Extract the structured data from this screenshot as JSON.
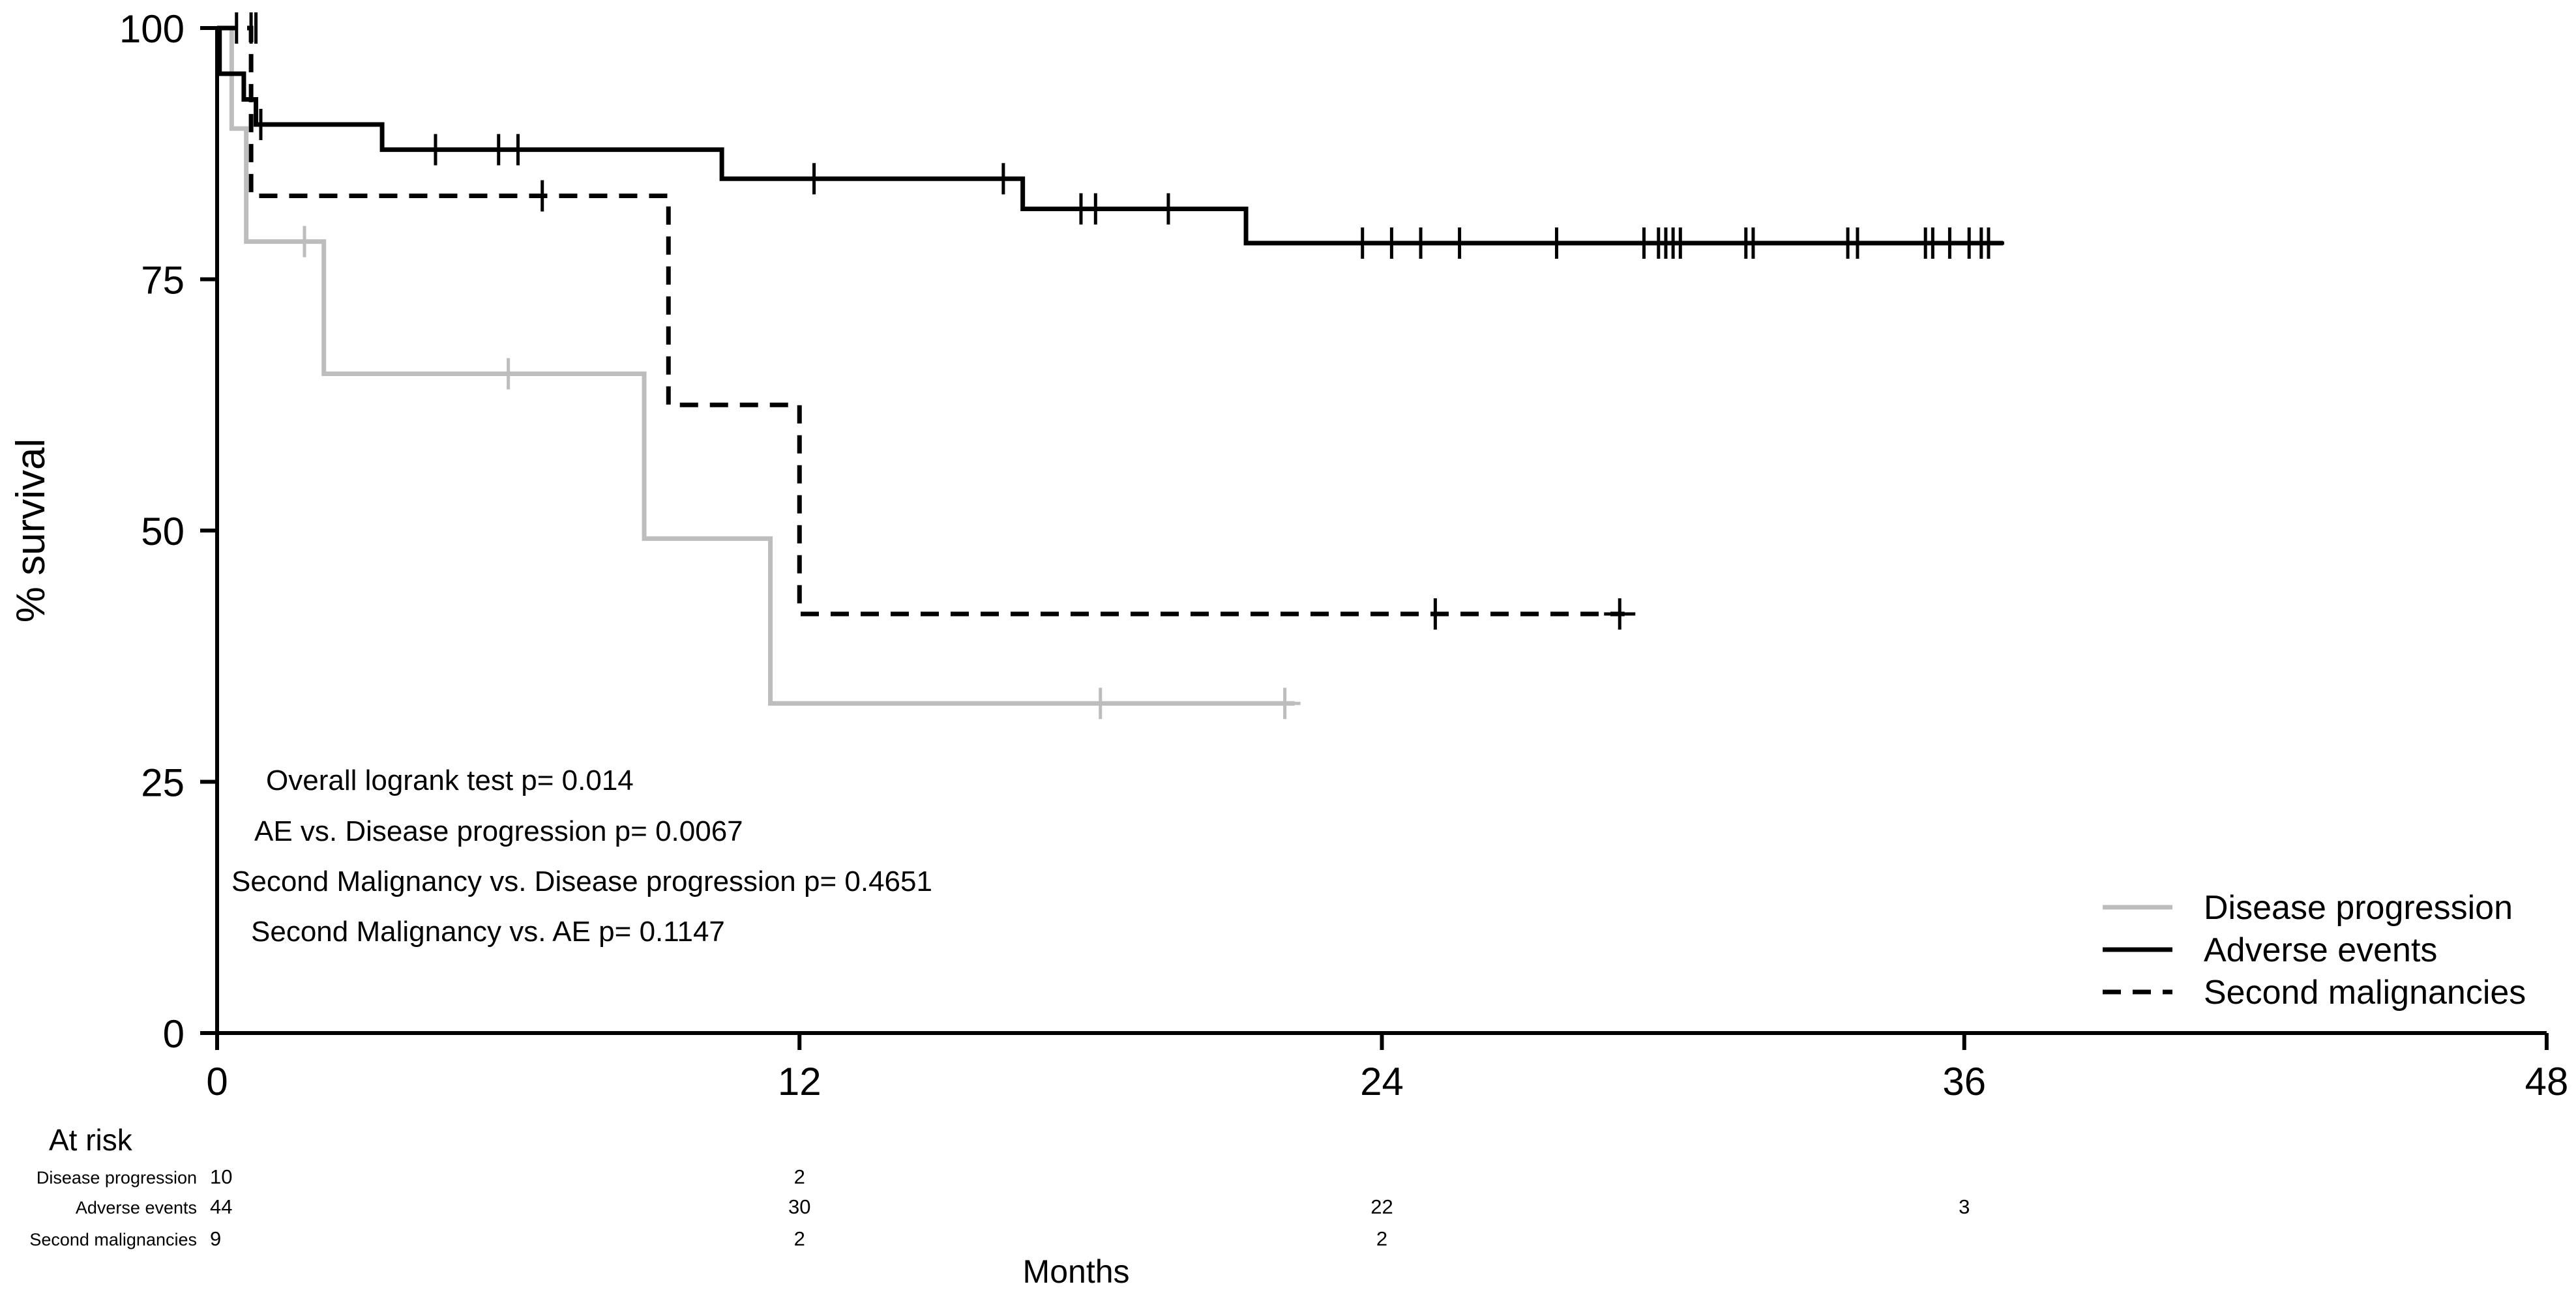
{
  "chart_data": {
    "type": "line",
    "subtype": "kaplan-meier",
    "title": "",
    "xlabel": "Months",
    "ylabel": "% survival",
    "xlim": [
      0,
      48
    ],
    "ylim": [
      0,
      100
    ],
    "xticks": [
      0,
      12,
      24,
      36,
      48
    ],
    "yticks": [
      0,
      25,
      50,
      75,
      100
    ],
    "grid": false,
    "legend_position": "bottom-right",
    "series": [
      {
        "name": "Disease progression",
        "color": "#bdbdbd",
        "dash": "solid",
        "steps": [
          [
            0,
            100
          ],
          [
            0.3,
            90
          ],
          [
            0.6,
            78.75
          ],
          [
            2.2,
            65.6
          ],
          [
            8.8,
            49.2
          ],
          [
            11.4,
            32.8
          ],
          [
            22.2,
            32.8
          ]
        ],
        "censors": [
          [
            1.8,
            78.75
          ],
          [
            6.0,
            65.6
          ],
          [
            18.2,
            32.8
          ],
          [
            22.0,
            32.8
          ]
        ]
      },
      {
        "name": "Adverse events",
        "color": "#000000",
        "dash": "solid",
        "steps": [
          [
            0,
            100
          ],
          [
            0.05,
            95.45
          ],
          [
            0.55,
            92.9
          ],
          [
            0.8,
            90.4
          ],
          [
            3.4,
            87.9
          ],
          [
            10.4,
            85.0
          ],
          [
            16.6,
            82.0
          ],
          [
            21.2,
            78.6
          ],
          [
            36.8,
            78.6
          ]
        ],
        "censors": [
          [
            0.4,
            100
          ],
          [
            0.7,
            100
          ],
          [
            0.9,
            90.4
          ],
          [
            4.5,
            87.9
          ],
          [
            5.8,
            87.9
          ],
          [
            6.2,
            87.9
          ],
          [
            12.3,
            85.0
          ],
          [
            16.2,
            85.0
          ],
          [
            17.8,
            82.0
          ],
          [
            18.1,
            82.0
          ],
          [
            19.6,
            82.0
          ],
          [
            23.6,
            78.6
          ],
          [
            24.2,
            78.6
          ],
          [
            24.8,
            78.6
          ],
          [
            25.6,
            78.6
          ],
          [
            27.6,
            78.6
          ],
          [
            29.4,
            78.6
          ],
          [
            29.7,
            78.6
          ],
          [
            29.85,
            78.6
          ],
          [
            30.0,
            78.6
          ],
          [
            30.15,
            78.6
          ],
          [
            31.5,
            78.6
          ],
          [
            31.65,
            78.6
          ],
          [
            33.6,
            78.6
          ],
          [
            33.8,
            78.6
          ],
          [
            35.2,
            78.6
          ],
          [
            35.35,
            78.6
          ],
          [
            35.7,
            78.6
          ],
          [
            36.1,
            78.6
          ],
          [
            36.35,
            78.6
          ],
          [
            36.5,
            78.6
          ]
        ]
      },
      {
        "name": "Second malignancies",
        "color": "#000000",
        "dash": "dashed",
        "steps": [
          [
            0,
            100
          ],
          [
            0.7,
            83.3
          ],
          [
            9.3,
            62.5
          ],
          [
            12.0,
            41.7
          ],
          [
            29.0,
            41.7
          ]
        ],
        "censors": [
          [
            0.8,
            100
          ],
          [
            6.7,
            83.3
          ],
          [
            25.1,
            41.7
          ],
          [
            28.9,
            41.7
          ]
        ]
      }
    ],
    "annotations": [
      "Overall logrank test p= 0.014",
      "AE vs. Disease progression p= 0.0067",
      "Second Malignancy vs. Disease progression p= 0.4651",
      "Second Malignancy vs. AE p= 0.1147"
    ],
    "at_risk": {
      "title": "At risk",
      "rows": [
        {
          "label": "Disease progression",
          "cells": [
            {
              "x": 0,
              "value": "10"
            },
            {
              "x": 12,
              "value": "2"
            }
          ]
        },
        {
          "label": "Adverse events",
          "cells": [
            {
              "x": 0,
              "value": "44"
            },
            {
              "x": 12,
              "value": "30"
            },
            {
              "x": 24,
              "value": "22"
            },
            {
              "x": 36,
              "value": "3"
            }
          ]
        },
        {
          "label": "Second malignancies",
          "cells": [
            {
              "x": 0,
              "value": "9"
            },
            {
              "x": 12,
              "value": "2"
            },
            {
              "x": 24,
              "value": "2"
            }
          ]
        }
      ]
    }
  }
}
